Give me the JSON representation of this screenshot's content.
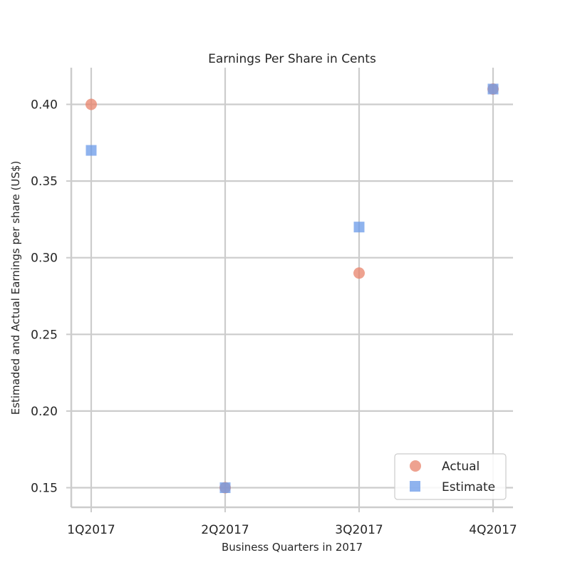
{
  "chart_data": {
    "type": "scatter",
    "title": "Earnings Per Share in Cents",
    "xlabel": "Business Quarters in 2017",
    "ylabel": "Estimaded and Actual Earnings per share (US$)",
    "categories": [
      "1Q2017",
      "2Q2017",
      "3Q2017",
      "4Q2017"
    ],
    "yticks": [
      "0.15",
      "0.20",
      "0.25",
      "0.30",
      "0.35",
      "0.40"
    ],
    "ylim": [
      0.137,
      0.423
    ],
    "grid": true,
    "legend_position": "bottom-right",
    "series": [
      {
        "name": "Actual",
        "marker": "circle",
        "color": "#e8836b",
        "values": [
          0.4,
          0.15,
          0.29,
          0.41
        ]
      },
      {
        "name": "Estimate",
        "marker": "square",
        "color": "#6a9ae8",
        "values": [
          0.37,
          0.15,
          0.32,
          0.41
        ]
      }
    ]
  }
}
